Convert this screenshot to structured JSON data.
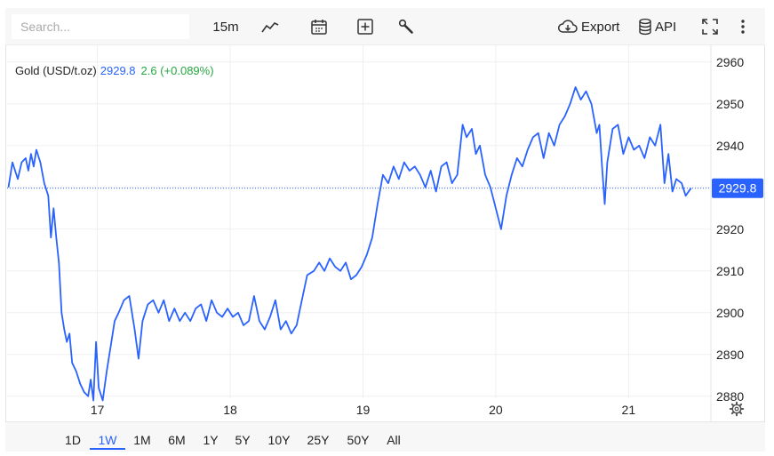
{
  "search": {
    "placeholder": "Search..."
  },
  "toolbar": {
    "interval": "15m",
    "export_label": "Export",
    "api_label": "API"
  },
  "legend": {
    "name": "Gold (USD/t.oz)",
    "price": "2929.8",
    "change": "2.6 (+0.089%)"
  },
  "colors": {
    "line": "#2962ff",
    "change_positive": "#26a641",
    "price_tag_bg": "#2962ff"
  },
  "icons": [
    "line-chart-icon",
    "calendar-icon",
    "add-indicator-icon",
    "wrench-icon",
    "cloud-download-icon",
    "database-icon",
    "fullscreen-icon",
    "more-vertical-icon",
    "gear-icon"
  ],
  "ranges": [
    "1D",
    "1W",
    "1M",
    "6M",
    "1Y",
    "5Y",
    "10Y",
    "25Y",
    "50Y",
    "All"
  ],
  "active_range": "1W",
  "chart_data": {
    "type": "line",
    "title": "Gold (USD/t.oz)",
    "last_price_label": "2929.8",
    "y_ticks": [
      2880,
      2890,
      2900,
      2910,
      2920,
      2930,
      2940,
      2950,
      2960
    ],
    "y_tick_labels": [
      "2880",
      "2890",
      "2900",
      "2910",
      "2920",
      "2940",
      "2950",
      "2960"
    ],
    "ylim": [
      2874,
      2964
    ],
    "x_ticks": [
      17,
      18,
      19,
      20,
      21
    ],
    "x_tick_labels": [
      "17",
      "18",
      "19",
      "20",
      "21"
    ],
    "xlim": [
      16.32,
      21.62
    ],
    "grid": true,
    "series": [
      {
        "values": [
          [
            16.33,
            2930
          ],
          [
            16.36,
            2936
          ],
          [
            16.4,
            2932
          ],
          [
            16.43,
            2936
          ],
          [
            16.46,
            2937
          ],
          [
            16.48,
            2934
          ],
          [
            16.5,
            2938
          ],
          [
            16.52,
            2935
          ],
          [
            16.54,
            2939
          ],
          [
            16.57,
            2936
          ],
          [
            16.6,
            2931
          ],
          [
            16.63,
            2928
          ],
          [
            16.65,
            2918
          ],
          [
            16.67,
            2925
          ],
          [
            16.69,
            2918
          ],
          [
            16.71,
            2912
          ],
          [
            16.73,
            2900
          ],
          [
            16.75,
            2896
          ],
          [
            16.77,
            2893
          ],
          [
            16.79,
            2895
          ],
          [
            16.81,
            2888
          ],
          [
            16.84,
            2886
          ],
          [
            16.87,
            2883
          ],
          [
            16.9,
            2881
          ],
          [
            16.93,
            2880
          ],
          [
            16.95,
            2884
          ],
          [
            16.97,
            2879
          ],
          [
            16.99,
            2893
          ],
          [
            17.01,
            2882
          ],
          [
            17.04,
            2879
          ],
          [
            17.07,
            2886
          ],
          [
            17.1,
            2892
          ],
          [
            17.13,
            2898
          ],
          [
            17.16,
            2900
          ],
          [
            17.2,
            2903
          ],
          [
            17.24,
            2904
          ],
          [
            17.28,
            2896
          ],
          [
            17.31,
            2889
          ],
          [
            17.34,
            2898
          ],
          [
            17.38,
            2902
          ],
          [
            17.42,
            2903
          ],
          [
            17.46,
            2900
          ],
          [
            17.5,
            2903
          ],
          [
            17.54,
            2898
          ],
          [
            17.58,
            2901
          ],
          [
            17.62,
            2898
          ],
          [
            17.66,
            2900
          ],
          [
            17.7,
            2898
          ],
          [
            17.74,
            2901
          ],
          [
            17.78,
            2902
          ],
          [
            17.82,
            2898
          ],
          [
            17.86,
            2903
          ],
          [
            17.9,
            2900
          ],
          [
            17.94,
            2899
          ],
          [
            17.98,
            2901
          ],
          [
            18.02,
            2899
          ],
          [
            18.06,
            2900
          ],
          [
            18.1,
            2897
          ],
          [
            18.14,
            2898
          ],
          [
            18.18,
            2904
          ],
          [
            18.22,
            2898
          ],
          [
            18.26,
            2896
          ],
          [
            18.3,
            2899
          ],
          [
            18.34,
            2903
          ],
          [
            18.38,
            2896
          ],
          [
            18.42,
            2898
          ],
          [
            18.46,
            2895
          ],
          [
            18.5,
            2897
          ],
          [
            18.54,
            2903
          ],
          [
            18.58,
            2909
          ],
          [
            18.63,
            2910
          ],
          [
            18.67,
            2912
          ],
          [
            18.71,
            2910
          ],
          [
            18.75,
            2913
          ],
          [
            18.79,
            2911
          ],
          [
            18.83,
            2910
          ],
          [
            18.87,
            2912
          ],
          [
            18.91,
            2908
          ],
          [
            18.95,
            2909
          ],
          [
            18.99,
            2911
          ],
          [
            19.03,
            2914
          ],
          [
            19.07,
            2918
          ],
          [
            19.11,
            2926
          ],
          [
            19.15,
            2933
          ],
          [
            19.19,
            2931
          ],
          [
            19.23,
            2935
          ],
          [
            19.27,
            2932
          ],
          [
            19.31,
            2936
          ],
          [
            19.35,
            2934
          ],
          [
            19.39,
            2935
          ],
          [
            19.43,
            2933
          ],
          [
            19.47,
            2930
          ],
          [
            19.51,
            2934
          ],
          [
            19.55,
            2929
          ],
          [
            19.59,
            2935
          ],
          [
            19.63,
            2936
          ],
          [
            19.67,
            2931
          ],
          [
            19.71,
            2933
          ],
          [
            19.75,
            2945
          ],
          [
            19.78,
            2942
          ],
          [
            19.82,
            2944
          ],
          [
            19.85,
            2938
          ],
          [
            19.88,
            2940
          ],
          [
            19.92,
            2933
          ],
          [
            19.96,
            2930
          ],
          [
            20.0,
            2925
          ],
          [
            20.04,
            2920
          ],
          [
            20.08,
            2928
          ],
          [
            20.12,
            2933
          ],
          [
            20.16,
            2937
          ],
          [
            20.2,
            2935
          ],
          [
            20.24,
            2939
          ],
          [
            20.28,
            2942
          ],
          [
            20.32,
            2943
          ],
          [
            20.36,
            2937
          ],
          [
            20.4,
            2943
          ],
          [
            20.44,
            2940
          ],
          [
            20.48,
            2945
          ],
          [
            20.52,
            2947
          ],
          [
            20.56,
            2950
          ],
          [
            20.6,
            2954
          ],
          [
            20.64,
            2951
          ],
          [
            20.68,
            2953
          ],
          [
            20.72,
            2950
          ],
          [
            20.76,
            2943
          ],
          [
            20.78,
            2945
          ],
          [
            20.8,
            2935
          ],
          [
            20.82,
            2926
          ],
          [
            20.84,
            2936
          ],
          [
            20.88,
            2944
          ],
          [
            20.92,
            2945
          ],
          [
            20.96,
            2938
          ],
          [
            21.0,
            2942
          ],
          [
            21.04,
            2939
          ],
          [
            21.08,
            2940
          ],
          [
            21.12,
            2937
          ],
          [
            21.16,
            2942
          ],
          [
            21.2,
            2940
          ],
          [
            21.24,
            2945
          ],
          [
            21.27,
            2931
          ],
          [
            21.3,
            2938
          ],
          [
            21.33,
            2929
          ],
          [
            21.36,
            2932
          ],
          [
            21.4,
            2931
          ],
          [
            21.43,
            2928
          ],
          [
            21.47,
            2929.8
          ]
        ]
      }
    ]
  }
}
